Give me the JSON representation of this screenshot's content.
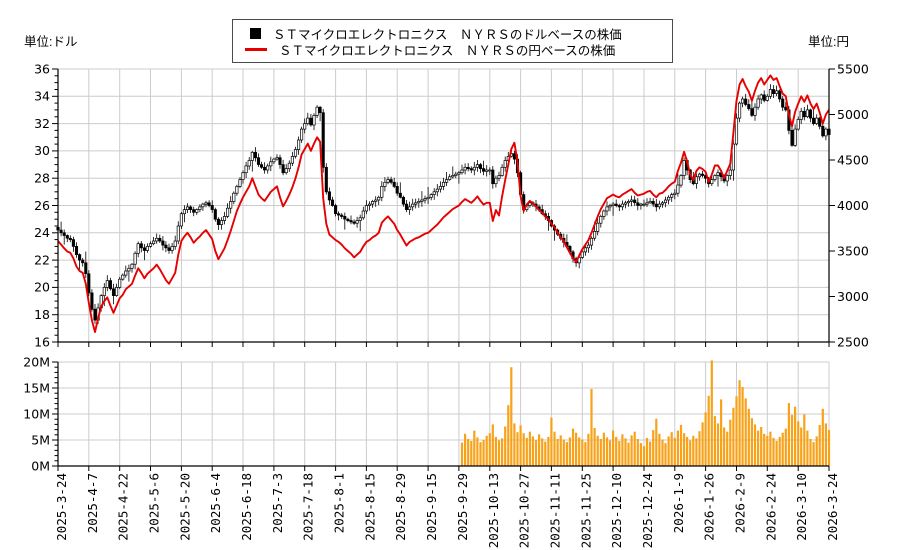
{
  "axes": {
    "left_unit": "単位:ドル",
    "right_unit": "単位:円"
  },
  "legend": {
    "items": [
      {
        "marker": "black-square",
        "label": "ＳＴマイクロエレクトロニクス　ＮＹＲＳのドルベースの株価"
      },
      {
        "marker": "red-line",
        "label": "ＳＴマイクロエレクトロニクス　ＮＹＲＳの円ベースの株価"
      }
    ]
  },
  "chart_data": {
    "type": "candlestick+line+volume",
    "x_axis": {
      "total_days": 250,
      "tick_labels": [
        "2025-3-24",
        "2025-4-7",
        "2025-4-22",
        "2025-5-6",
        "2025-5-20",
        "2025-6-4",
        "2025-6-18",
        "2025-7-3",
        "2025-7-18",
        "2025-8-1",
        "2025-8-15",
        "2025-8-29",
        "2025-9-15",
        "2025-9-29",
        "2025-10-13",
        "2025-10-27",
        "2025-11-11",
        "2025-11-25",
        "2025-12-10",
        "2025-12-24",
        "2026-1-9",
        "2026-1-26",
        "2026-2-9",
        "2026-2-24",
        "2026-3-10",
        "2026-3-24"
      ]
    },
    "usd_axis": {
      "label": "単位:ドル",
      "min": 16,
      "max": 36,
      "tick_step": 2,
      "tick_labels": [
        "36",
        "34",
        "32",
        "30",
        "28",
        "26",
        "24",
        "22",
        "20",
        "18",
        "16"
      ]
    },
    "yen_axis": {
      "label": "単位:円",
      "min": 2500,
      "max": 5500,
      "tick_step": 500,
      "tick_labels": [
        "5500",
        "5000",
        "4500",
        "4000",
        "3500",
        "3000",
        "2500"
      ]
    },
    "volume_axis": {
      "min": 0,
      "max": 20,
      "tick_step": 5,
      "unit": "M",
      "tick_labels": [
        "20M",
        "15M",
        "10M",
        "5M",
        "0M"
      ]
    },
    "series": [
      {
        "name": "ＳＴマイクロエレクトロニクス　ＮＹＲＳのドルベースの株価",
        "type": "candlestick",
        "axis": "usd"
      },
      {
        "name": "ＳＴマイクロエレクトロニクス　ＮＹＲＳの円ベースの株価",
        "type": "line",
        "axis": "yen"
      }
    ],
    "usd_close": [
      24.2,
      24.0,
      23.8,
      23.6,
      23.5,
      23.0,
      22.4,
      22.0,
      21.8,
      21.0,
      19.6,
      18.4,
      17.6,
      18.5,
      19.4,
      20.0,
      20.5,
      19.9,
      19.4,
      20.0,
      20.6,
      20.9,
      21.2,
      21.4,
      21.7,
      22.5,
      23.2,
      22.9,
      22.7,
      23.0,
      23.2,
      23.4,
      23.6,
      23.4,
      23.1,
      22.9,
      22.7,
      23.0,
      23.4,
      24.5,
      25.4,
      25.7,
      25.9,
      25.7,
      25.5,
      25.7,
      25.9,
      26.1,
      26.2,
      26.0,
      25.7,
      25.0,
      24.6,
      24.9,
      25.2,
      25.8,
      26.3,
      26.9,
      27.4,
      27.9,
      28.4,
      28.9,
      29.3,
      29.9,
      29.5,
      29.0,
      28.8,
      28.6,
      28.9,
      29.2,
      29.4,
      29.5,
      29.0,
      28.4,
      28.7,
      29.1,
      29.6,
      30.1,
      30.8,
      31.6,
      32.0,
      32.4,
      31.9,
      32.6,
      33.2,
      32.8,
      28.8,
      27.0,
      26.4,
      26.0,
      25.4,
      25.3,
      25.2,
      25.0,
      24.9,
      24.8,
      24.7,
      24.9,
      25.1,
      25.6,
      26.0,
      26.1,
      26.3,
      26.4,
      26.6,
      27.4,
      27.7,
      27.9,
      27.7,
      27.4,
      26.9,
      26.6,
      26.1,
      25.7,
      25.9,
      26.1,
      26.2,
      26.3,
      26.4,
      26.5,
      26.6,
      26.8,
      27.0,
      27.2,
      27.4,
      27.7,
      27.9,
      28.1,
      28.2,
      28.3,
      28.4,
      28.6,
      28.8,
      28.7,
      28.6,
      28.8,
      29.0,
      28.7,
      28.5,
      28.6,
      28.6,
      27.6,
      28.0,
      28.2,
      28.8,
      29.3,
      29.6,
      29.8,
      29.4,
      28.4,
      26.8,
      25.7,
      26.0,
      26.2,
      26.1,
      25.9,
      25.7,
      25.4,
      25.2,
      24.9,
      24.5,
      24.2,
      23.9,
      23.6,
      23.3,
      23.0,
      22.6,
      22.1,
      21.8,
      22.2,
      22.6,
      22.9,
      23.1,
      23.6,
      24.1,
      24.7,
      25.2,
      25.6,
      25.9,
      26.0,
      26.1,
      26.0,
      25.9,
      26.1,
      26.2,
      26.3,
      26.4,
      26.2,
      26.0,
      26.1,
      26.1,
      26.2,
      26.3,
      26.1,
      25.9,
      26.1,
      26.2,
      26.4,
      26.6,
      26.8,
      26.9,
      27.5,
      28.2,
      29.3,
      28.6,
      27.9,
      27.6,
      28.1,
      28.3,
      28.2,
      28.0,
      27.6,
      27.9,
      28.2,
      28.4,
      28.1,
      27.8,
      28.2,
      28.6,
      30.5,
      32.4,
      33.5,
      33.8,
      33.4,
      33.1,
      32.6,
      33.2,
      33.8,
      34.1,
      33.7,
      34.0,
      34.5,
      34.2,
      34.4,
      33.8,
      33.2,
      33.0,
      31.5,
      30.4,
      31.6,
      32.3,
      32.9,
      32.5,
      33.0,
      32.4,
      32.0,
      32.4,
      31.8,
      31.1,
      31.6,
      31.2
    ],
    "yen_close": [
      3610,
      3570,
      3530,
      3495,
      3480,
      3420,
      3330,
      3280,
      3260,
      3140,
      2930,
      2740,
      2610,
      2760,
      2890,
      2950,
      2990,
      2900,
      2820,
      2900,
      2980,
      3020,
      3080,
      3110,
      3140,
      3230,
      3310,
      3260,
      3200,
      3250,
      3280,
      3310,
      3350,
      3300,
      3240,
      3180,
      3140,
      3200,
      3260,
      3460,
      3610,
      3660,
      3700,
      3650,
      3590,
      3630,
      3660,
      3700,
      3730,
      3680,
      3630,
      3500,
      3410,
      3470,
      3530,
      3620,
      3720,
      3830,
      3940,
      4020,
      4090,
      4150,
      4210,
      4300,
      4210,
      4120,
      4080,
      4050,
      4100,
      4150,
      4180,
      4210,
      4090,
      3990,
      4050,
      4120,
      4200,
      4300,
      4420,
      4560,
      4620,
      4680,
      4600,
      4680,
      4750,
      4700,
      4080,
      3800,
      3680,
      3650,
      3620,
      3600,
      3570,
      3530,
      3500,
      3470,
      3430,
      3460,
      3490,
      3550,
      3600,
      3620,
      3650,
      3670,
      3700,
      3810,
      3850,
      3880,
      3840,
      3800,
      3730,
      3680,
      3620,
      3560,
      3600,
      3620,
      3640,
      3650,
      3670,
      3690,
      3700,
      3730,
      3760,
      3790,
      3830,
      3870,
      3900,
      3930,
      3960,
      3980,
      4000,
      4040,
      4070,
      4050,
      4030,
      4060,
      4100,
      4050,
      4010,
      4030,
      4030,
      3830,
      3950,
      3890,
      4100,
      4280,
      4450,
      4620,
      4690,
      4480,
      4100,
      3940,
      4010,
      4050,
      4020,
      3990,
      3950,
      3920,
      3880,
      3850,
      3800,
      3760,
      3700,
      3650,
      3610,
      3540,
      3480,
      3420,
      3380,
      3450,
      3520,
      3570,
      3620,
      3700,
      3790,
      3880,
      3960,
      4020,
      4080,
      4100,
      4120,
      4100,
      4090,
      4120,
      4140,
      4160,
      4180,
      4140,
      4110,
      4120,
      4130,
      4150,
      4160,
      4120,
      4090,
      4130,
      4140,
      4170,
      4210,
      4240,
      4260,
      4380,
      4470,
      4590,
      4480,
      4340,
      4280,
      4380,
      4420,
      4400,
      4370,
      4260,
      4340,
      4440,
      4440,
      4380,
      4300,
      4380,
      4460,
      4800,
      5150,
      5330,
      5390,
      5310,
      5250,
      5150,
      5260,
      5350,
      5400,
      5330,
      5380,
      5430,
      5380,
      5400,
      5310,
      5230,
      5200,
      5000,
      4870,
      5030,
      5120,
      5200,
      5140,
      5210,
      5120,
      5060,
      5120,
      5020,
      4900,
      5000,
      5050
    ],
    "volume": {
      "start_day": 131,
      "values_millions": [
        4.5,
        6.2,
        5.2,
        4.8,
        6.8,
        5.5,
        4.6,
        5.0,
        5.8,
        6.3,
        8.0,
        5.6,
        4.9,
        5.3,
        7.6,
        11.7,
        19.0,
        8.2,
        6.5,
        7.8,
        6.3,
        5.4,
        6.6,
        5.7,
        5.0,
        6.1,
        5.3,
        4.7,
        5.6,
        9.3,
        6.6,
        5.2,
        5.9,
        5.1,
        4.6,
        5.5,
        7.2,
        6.4,
        5.5,
        5.1,
        4.6,
        6.2,
        14.8,
        7.3,
        5.8,
        5.2,
        6.4,
        5.5,
        4.9,
        6.8,
        5.6,
        4.8,
        6.1,
        5.3,
        4.5,
        5.9,
        6.6,
        5.2,
        4.4,
        3.8,
        5.4,
        4.7,
        6.9,
        9.1,
        6.2,
        5.1,
        4.4,
        5.7,
        6.5,
        5.4,
        6.8,
        7.9,
        6.3,
        5.6,
        4.9,
        5.8,
        5.3,
        6.7,
        8.4,
        10.3,
        13.5,
        20.3,
        9.6,
        8.2,
        12.8,
        7.4,
        6.6,
        8.9,
        11.2,
        13.4,
        16.5,
        15.2,
        13.0,
        11.0,
        9.2,
        8.0,
        6.8,
        7.5,
        6.2,
        5.8,
        6.6,
        5.4,
        4.8,
        5.6,
        6.4,
        7.2,
        12.1,
        9.8,
        11.4,
        8.6,
        7.4,
        9.9,
        6.8,
        5.2,
        4.6,
        5.7,
        7.9,
        11.0,
        8.2,
        6.9
      ]
    },
    "colors": {
      "yen_line": "#e60000",
      "volume_bar": "#f7a219",
      "candle_up": "#ffffff",
      "candle_down": "#000000",
      "grid": "#cccccc",
      "axis": "#000000"
    },
    "layout": {
      "grid": true,
      "legend_position": "top-center",
      "x_labels_rotated": true,
      "volume_panel": "bottom"
    }
  }
}
